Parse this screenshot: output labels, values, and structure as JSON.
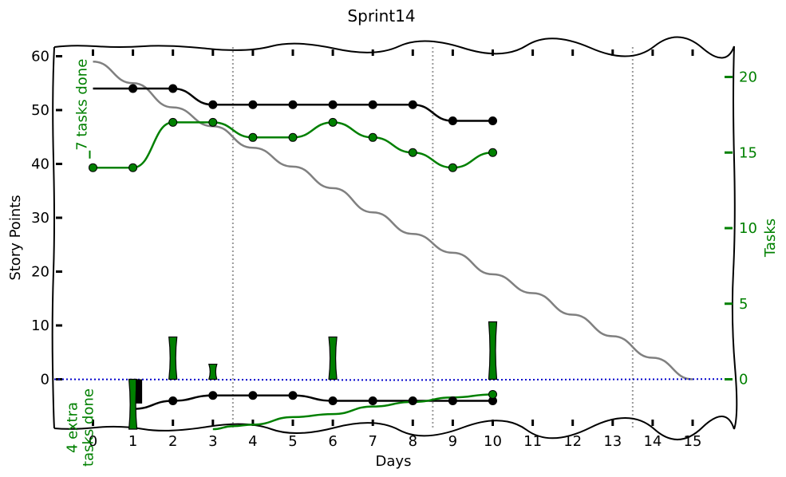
{
  "chart_data": {
    "type": "line",
    "title": "Sprint14",
    "xlabel": "Days",
    "ylabel": "Story Points",
    "y2label": "Tasks",
    "xlim": [
      -1,
      16
    ],
    "ylim": [
      -9.5,
      61
    ],
    "y2lim": [
      -3.3,
      22
    ],
    "x_ticks": [
      "0",
      "1",
      "2",
      "3",
      "4",
      "5",
      "6",
      "7",
      "8",
      "9",
      "10",
      "11",
      "12",
      "13",
      "14",
      "15"
    ],
    "y_ticks": [
      "0",
      "10",
      "20",
      "30",
      "40",
      "50",
      "60"
    ],
    "y2_ticks": [
      "0",
      "5",
      "10",
      "15",
      "20"
    ],
    "week_separators": [
      3.5,
      8.5,
      13.5
    ],
    "series": [
      {
        "role": "ideal",
        "color": "#808080",
        "x": [
          0,
          1,
          2,
          3,
          4,
          5,
          6,
          7,
          8,
          9,
          10,
          11,
          12,
          13,
          14,
          15
        ],
        "y": [
          59,
          55,
          50.5,
          47,
          43,
          39.5,
          35.5,
          31,
          27,
          23.5,
          19.5,
          16,
          12,
          8,
          4,
          0
        ]
      },
      {
        "role": "story-points",
        "color": "#000000",
        "x": [
          0,
          1,
          2,
          3,
          4,
          5,
          6,
          7,
          8,
          9,
          10
        ],
        "y": [
          54,
          54,
          54,
          51,
          51,
          51,
          51,
          51,
          51,
          48,
          48
        ]
      },
      {
        "role": "tasks",
        "color": "#008000",
        "axis": "right",
        "x": [
          0,
          1,
          2,
          3,
          4,
          5,
          6,
          7,
          8,
          9,
          10
        ],
        "y": [
          14,
          14,
          17,
          17,
          16,
          16,
          17,
          16,
          15,
          14,
          15
        ]
      },
      {
        "role": "extra-story-points",
        "color": "#000000",
        "x": [
          1,
          2,
          3,
          4,
          5,
          6,
          7,
          8,
          9,
          10
        ],
        "y": [
          -5.5,
          -4,
          -3,
          -3,
          -3,
          -4,
          -4,
          -4,
          -4,
          -4
        ]
      },
      {
        "role": "extra-tasks",
        "color": "#008000",
        "axis": "right",
        "x": [
          3,
          3.5,
          4,
          5,
          6,
          7,
          8,
          9,
          10
        ],
        "y": [
          -3.3,
          -3.1,
          -3,
          -2.5,
          -2.3,
          -1.8,
          -1.5,
          -1.2,
          -1
        ]
      },
      {
        "role": "zero-line",
        "color": "#0000cc",
        "style": "dotted",
        "axis": "right",
        "x": [
          -1,
          16
        ],
        "y": [
          0,
          0
        ]
      }
    ],
    "bars": {
      "color": "#008000",
      "tasks": [
        {
          "x": 1,
          "value": -3.3
        },
        {
          "x": 2,
          "value": 2.8
        },
        {
          "x": 3,
          "value": 1
        },
        {
          "x": 6,
          "value": 2.8
        },
        {
          "x": 10,
          "value": 3.8
        }
      ],
      "story_points": [
        {
          "x": 1.15,
          "value": -4.5
        }
      ]
    },
    "annotations": [
      {
        "text": "7 tasks done",
        "color": "#008000",
        "x": 0,
        "y": 51,
        "arrow_to_y": 41
      },
      {
        "text": "4 extra\ntasks done",
        "color": "#008000",
        "x": 0,
        "y": -6
      }
    ]
  }
}
